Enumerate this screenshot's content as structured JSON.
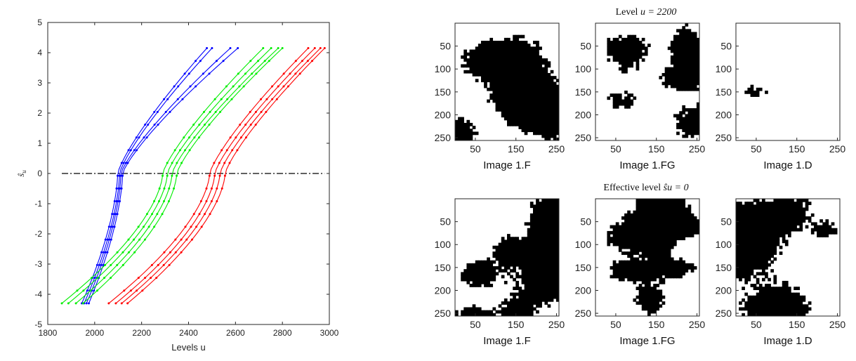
{
  "chart_data": [
    {
      "type": "line",
      "xlabel": "Levels u",
      "ylabel": "ŝ",
      "ylabel_sub": "u",
      "xlim": [
        1800,
        3000
      ],
      "ylim": [
        -5,
        5
      ],
      "xticks": [
        1800,
        2000,
        2200,
        2400,
        2600,
        2800,
        3000
      ],
      "yticks": [
        5,
        4,
        3,
        2,
        1,
        0,
        -1,
        -2,
        -3,
        -4,
        -5
      ],
      "grid": false,
      "reference_line": {
        "y": 0,
        "style": "dash-dot",
        "x_range": [
          1860,
          2980
        ]
      },
      "groups": [
        {
          "color": "#0000ff",
          "curves": [
            {
              "start": 1945,
              "end": 2478,
              "zero": 2098
            },
            {
              "start": 1955,
              "end": 2500,
              "zero": 2106
            },
            {
              "start": 1965,
              "end": 2578,
              "zero": 2112
            },
            {
              "start": 1975,
              "end": 2610,
              "zero": 2119
            }
          ]
        },
        {
          "color": "#00ee00",
          "curves": [
            {
              "start": 1860,
              "end": 2718,
              "zero": 2290
            },
            {
              "start": 1888,
              "end": 2752,
              "zero": 2310
            },
            {
              "start": 1920,
              "end": 2782,
              "zero": 2330
            },
            {
              "start": 1950,
              "end": 2800,
              "zero": 2350
            }
          ]
        },
        {
          "color": "#ff0000",
          "curves": [
            {
              "start": 2060,
              "end": 2910,
              "zero": 2490
            },
            {
              "start": 2090,
              "end": 2938,
              "zero": 2512
            },
            {
              "start": 2115,
              "end": 2962,
              "zero": 2534
            },
            {
              "start": 2140,
              "end": 2980,
              "zero": 2556
            }
          ]
        }
      ],
      "y_start": -4.3,
      "y_end": 4.15
    },
    {
      "type": "heatmap",
      "rows": [
        {
          "title_prefix": "Level ",
          "title_math": "u = 2200",
          "panels": [
            {
              "caption": "Image 1.F",
              "black_fraction": 0.55
            },
            {
              "caption": "Image 1.FG",
              "black_fraction": 0.3
            },
            {
              "caption": "Image 1.D",
              "black_fraction": 0.01
            }
          ]
        },
        {
          "title_prefix": "Effective level ",
          "title_math": "ŝu = 0",
          "panels": [
            {
              "caption": "Image 1.F",
              "black_fraction": 0.5
            },
            {
              "caption": "Image 1.FG",
              "black_fraction": 0.5
            },
            {
              "caption": "Image 1.D",
              "black_fraction": 0.5
            }
          ]
        }
      ],
      "xticks": [
        50,
        150,
        250
      ],
      "yticks": [
        50,
        100,
        150,
        200,
        250
      ],
      "xlim": [
        0,
        256
      ],
      "ylim": [
        0,
        256
      ]
    }
  ]
}
